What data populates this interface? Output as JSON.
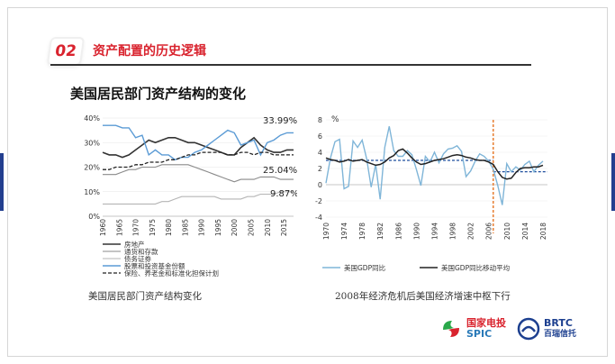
{
  "header": {
    "badge_number": "02",
    "title": "资产配置的历史逻辑"
  },
  "subtitle": "美国居民部门资产结构的变化",
  "left_chart": {
    "caption": "美国居民部门资产结构变化",
    "annotations": [
      "33.99%",
      "25.04%",
      "9.87%"
    ],
    "legend": [
      "房地产",
      "通货和存款",
      "债务证券",
      "股票和投资基金份额",
      "保险、养老金和标准化担保计划"
    ]
  },
  "right_chart": {
    "caption": "2008年经济危机后美国经济增速中枢下行",
    "unit": "%",
    "legend": [
      "美国GDP同比",
      "美国GDP同比移动平均"
    ]
  },
  "logos": {
    "spic_cn": "国家电投",
    "spic_en": "SPIC",
    "brtc_en": "BRTC",
    "brtc_cn": "百瑞信托"
  },
  "colors": {
    "accent": "#d9232e",
    "navy": "#233f8f",
    "light_blue": "#7fb5d8",
    "dark": "#222222"
  },
  "chart_data": [
    {
      "type": "line",
      "x": [
        1960,
        1962,
        1964,
        1966,
        1968,
        1970,
        1972,
        1974,
        1976,
        1978,
        1980,
        1982,
        1984,
        1986,
        1988,
        1990,
        1992,
        1994,
        1996,
        1998,
        2000,
        2002,
        2004,
        2006,
        2008,
        2010,
        2012,
        2014,
        2016,
        2018
      ],
      "series": [
        {
          "name": "房地产",
          "values": [
            26,
            25,
            25,
            24,
            25,
            27,
            29,
            31,
            30,
            31,
            32,
            32,
            31,
            30,
            30,
            29,
            28,
            27,
            26,
            25,
            25,
            28,
            30,
            32,
            29,
            27,
            26,
            26,
            27,
            27
          ]
        },
        {
          "name": "通货和存款",
          "values": [
            17,
            17,
            17,
            18,
            19,
            19,
            20,
            20,
            20,
            21,
            21,
            21,
            21,
            21,
            20,
            19,
            18,
            17,
            16,
            15,
            14,
            15,
            15,
            15,
            16,
            16,
            16,
            15,
            15,
            15
          ]
        },
        {
          "name": "债务证券",
          "values": [
            5,
            5,
            5,
            5,
            5,
            5,
            5,
            5,
            5,
            6,
            6,
            7,
            8,
            8,
            8,
            8,
            8,
            8,
            7,
            7,
            7,
            7,
            8,
            8,
            9,
            9,
            9,
            10,
            10,
            10
          ]
        },
        {
          "name": "股票和投资基金份额",
          "values": [
            37,
            37,
            37,
            36,
            36,
            32,
            33,
            25,
            27,
            25,
            25,
            23,
            24,
            24,
            26,
            27,
            29,
            31,
            33,
            35,
            34,
            29,
            30,
            31,
            25,
            30,
            31,
            33,
            34,
            34
          ]
        },
        {
          "name": "保险、养老金和标准化担保计划",
          "values": [
            19,
            19,
            20,
            20,
            20,
            21,
            21,
            22,
            22,
            22,
            23,
            23,
            24,
            25,
            25,
            26,
            26,
            26,
            26,
            25,
            25,
            26,
            26,
            25,
            26,
            26,
            25,
            25,
            25,
            25
          ]
        }
      ],
      "xlim": [
        1960,
        2018
      ],
      "ylim": [
        0,
        40
      ],
      "y_ticks": [
        "0%",
        "10%",
        "20%",
        "30%",
        "40%"
      ],
      "x_ticks": [
        "1960",
        "1965",
        "1970",
        "1975",
        "1980",
        "1985",
        "1990",
        "1995",
        "2000",
        "2005",
        "2010",
        "2015"
      ]
    },
    {
      "type": "line",
      "x": [
        1970,
        1971,
        1972,
        1973,
        1974,
        1975,
        1976,
        1977,
        1978,
        1979,
        1980,
        1981,
        1982,
        1983,
        1984,
        1985,
        1986,
        1987,
        1988,
        1989,
        1990,
        1991,
        1992,
        1993,
        1994,
        1995,
        1996,
        1997,
        1998,
        1999,
        2000,
        2001,
        2002,
        2003,
        2004,
        2005,
        2006,
        2007,
        2008,
        2009,
        2010,
        2011,
        2012,
        2013,
        2014,
        2015,
        2016,
        2017,
        2018
      ],
      "series": [
        {
          "name": "美国GDP同比",
          "values": [
            0.2,
            3.3,
            5.3,
            5.6,
            -0.5,
            -0.2,
            5.4,
            4.6,
            5.5,
            3.2,
            -0.3,
            2.5,
            -1.8,
            4.6,
            7.2,
            4.2,
            3.5,
            3.5,
            4.2,
            3.7,
            1.9,
            -0.1,
            3.5,
            2.8,
            4.0,
            2.7,
            3.8,
            4.4,
            4.5,
            4.8,
            4.1,
            1.0,
            1.7,
            2.9,
            3.8,
            3.5,
            2.9,
            1.9,
            -0.1,
            -2.5,
            2.6,
            1.6,
            2.2,
            1.8,
            2.5,
            2.9,
            1.6,
            2.4,
            2.9
          ]
        },
        {
          "name": "美国GDP同比移动平均",
          "values": [
            3.3,
            3.1,
            3.0,
            2.8,
            2.9,
            3.1,
            2.9,
            3.0,
            3.1,
            2.8,
            2.6,
            2.4,
            2.5,
            2.8,
            3.3,
            3.6,
            4.2,
            4.4,
            3.9,
            3.3,
            2.8,
            2.5,
            2.6,
            2.8,
            3.0,
            3.1,
            3.2,
            3.4,
            3.6,
            3.7,
            3.6,
            3.4,
            3.3,
            3.1,
            3.0,
            3.0,
            2.8,
            2.5,
            1.6,
            0.9,
            0.7,
            0.8,
            1.5,
            2.0,
            2.1,
            2.1,
            2.2,
            2.2,
            2.4
          ]
        }
      ],
      "reference_lines": [
        {
          "from": 1970,
          "to": 2007,
          "y": 3.0
        },
        {
          "from": 2007,
          "to": 2019,
          "y": 1.6
        }
      ],
      "vertical_marker": 2007,
      "xlim": [
        1970,
        2019
      ],
      "ylim": [
        -4,
        8
      ],
      "y_ticks": [
        "-4",
        "-2",
        "0",
        "2",
        "4",
        "6",
        "8"
      ],
      "x_ticks": [
        "1970",
        "1974",
        "1978",
        "1982",
        "1986",
        "1990",
        "1994",
        "1998",
        "2002",
        "2006",
        "2010",
        "2014",
        "2018"
      ]
    }
  ]
}
